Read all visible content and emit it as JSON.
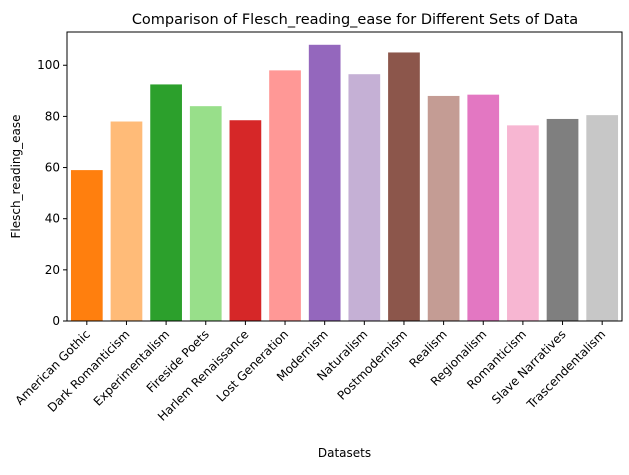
{
  "chart_data": {
    "type": "bar",
    "title": "Comparison of Flesch_reading_ease for Different Sets of Data",
    "xlabel": "Datasets",
    "ylabel": "Flesch_reading_ease",
    "ylim": [
      0,
      113
    ],
    "yticks": [
      0,
      20,
      40,
      60,
      80,
      100
    ],
    "grid": false,
    "categories": [
      "American Gothic",
      "Dark Romanticism",
      "Experimentalism",
      "Fireside Poets",
      "Harlem Renaissance",
      "Lost Generation",
      "Modernism",
      "Naturalism",
      "Postmodernism",
      "Realism",
      "Regionalism",
      "Romanticism",
      "Slave Narratives",
      "Trascendentalism"
    ],
    "values": [
      59,
      78,
      92.5,
      84,
      78.5,
      98,
      108,
      96.5,
      105,
      88,
      88.5,
      76.5,
      79,
      80.5
    ],
    "colors": [
      "#ff7f0e",
      "#ffbb78",
      "#2ca02c",
      "#98df8a",
      "#d62728",
      "#ff9896",
      "#9467bd",
      "#c5b0d5",
      "#8c564b",
      "#c49c94",
      "#e377c2",
      "#f7b6d2",
      "#7f7f7f",
      "#c7c7c7"
    ]
  }
}
